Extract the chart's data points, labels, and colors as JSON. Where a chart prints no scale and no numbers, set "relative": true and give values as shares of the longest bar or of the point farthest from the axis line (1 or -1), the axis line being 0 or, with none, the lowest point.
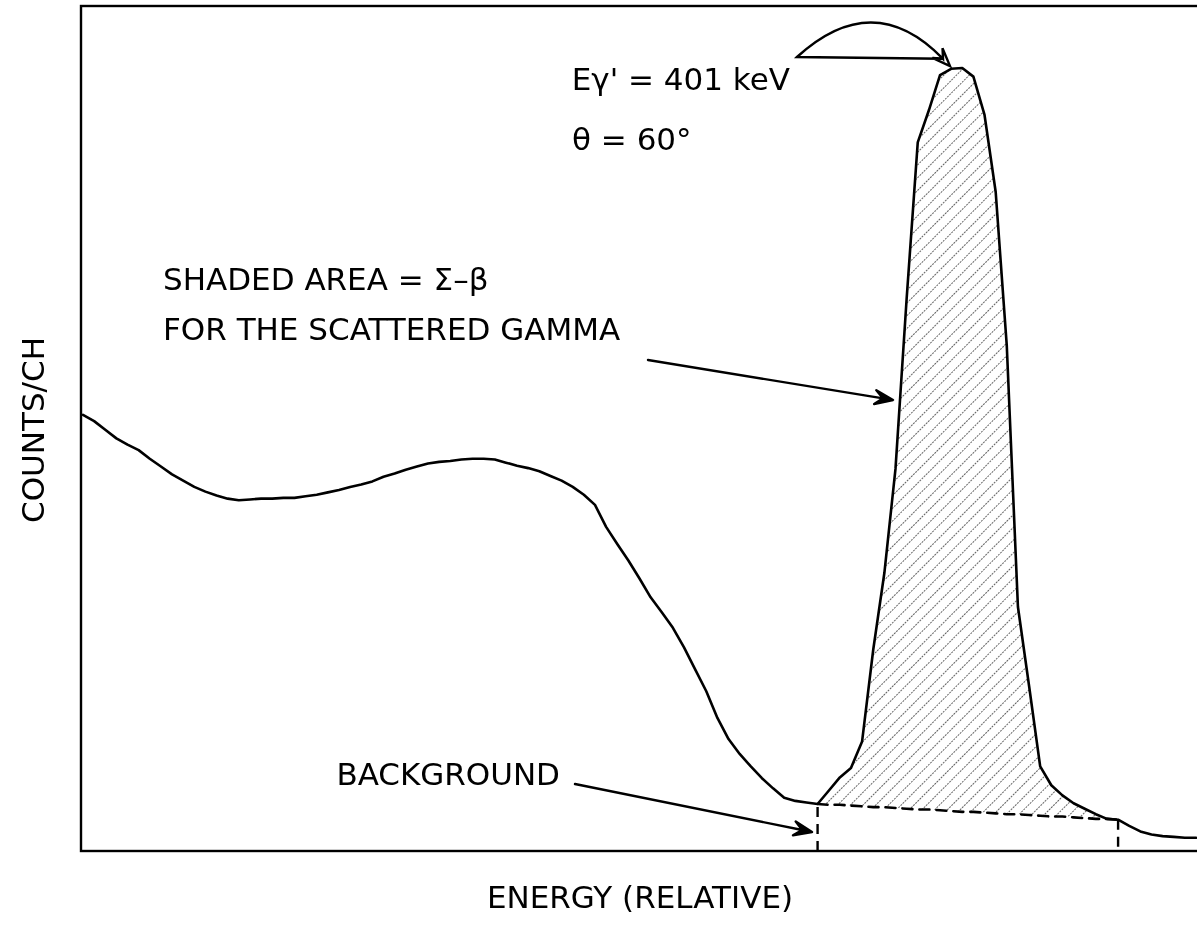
{
  "chart_data": {
    "type": "line",
    "relative": true,
    "xlabel": "ENERGY (RELATIVE)",
    "ylabel": "COUNTS/CH",
    "categories": [
      null,
      null,
      null,
      null,
      null,
      null,
      null,
      null,
      null,
      null,
      null,
      null,
      null,
      null,
      null,
      null,
      null,
      null,
      null,
      null,
      null,
      null,
      null,
      null,
      null,
      null,
      null,
      null,
      null,
      null,
      null,
      null,
      null,
      null,
      null,
      null,
      null,
      null,
      null,
      null,
      null,
      null,
      null,
      null,
      null,
      null,
      null,
      null,
      null,
      null,
      null,
      null,
      null,
      null,
      null,
      null,
      null,
      null,
      null,
      null,
      null,
      null,
      null,
      null,
      null,
      null,
      null,
      null,
      null,
      null,
      null,
      null,
      null,
      null,
      null,
      null,
      null,
      null,
      null,
      null,
      null,
      null,
      null,
      null,
      null,
      null,
      null,
      null,
      null,
      null,
      null,
      null,
      null,
      null,
      null,
      null,
      null,
      null,
      null,
      null,
      null
    ],
    "annotations": [
      "Eγ' = 401 keV",
      "θ = 60°",
      "SHADED AREA = Σ–β\nFOR THE SCATTERED GAMMA",
      "BACKGROUND"
    ],
    "series": [
      {
        "color": "#000000",
        "values": [
          0.557,
          0.549,
          0.538,
          0.527,
          0.519,
          0.512,
          0.501,
          0.491,
          0.481,
          0.473,
          0.465,
          0.459,
          0.454,
          0.45,
          0.448,
          0.449,
          0.45,
          0.45,
          0.451,
          0.451,
          0.453,
          0.455,
          0.458,
          0.461,
          0.465,
          0.468,
          0.472,
          0.478,
          0.482,
          0.487,
          0.491,
          0.495,
          0.497,
          0.498,
          0.5,
          0.501,
          0.501,
          0.5,
          0.496,
          0.492,
          0.489,
          0.485,
          0.479,
          0.473,
          0.465,
          0.455,
          0.442,
          0.414,
          0.392,
          0.371,
          0.348,
          0.324,
          0.305,
          0.285,
          0.26,
          0.232,
          0.204,
          0.17,
          0.143,
          0.124,
          0.108,
          0.093,
          0.08,
          0.068,
          0.064,
          0.062,
          0.06,
          0.077,
          0.094,
          0.106,
          0.14,
          0.257,
          0.355,
          0.488,
          0.705,
          0.905,
          0.946,
          0.991,
          0.999,
          1.0,
          0.989,
          0.94,
          0.842,
          0.645,
          0.312,
          0.211,
          0.108,
          0.084,
          0.071,
          0.061,
          0.054,
          0.047,
          0.041,
          0.04,
          0.032,
          0.025,
          0.021,
          0.019,
          0.018,
          0.017,
          0.017
        ]
      },
      {
        "type": "line",
        "color": "#000000",
        "line_style": "dashed",
        "values": [
          null,
          null,
          null,
          null,
          null,
          null,
          null,
          null,
          null,
          null,
          null,
          null,
          null,
          null,
          null,
          null,
          null,
          null,
          null,
          null,
          null,
          null,
          null,
          null,
          null,
          null,
          null,
          null,
          null,
          null,
          null,
          null,
          null,
          null,
          null,
          null,
          null,
          null,
          null,
          null,
          null,
          null,
          null,
          null,
          null,
          null,
          null,
          null,
          null,
          null,
          null,
          null,
          null,
          null,
          null,
          null,
          null,
          null,
          null,
          null,
          null,
          null,
          null,
          null,
          null,
          null,
          0.06,
          0.059,
          0.059,
          0.058,
          0.057,
          0.056,
          0.056,
          0.055,
          0.054,
          0.053,
          0.053,
          0.052,
          0.051,
          0.05,
          0.05,
          0.049,
          0.048,
          0.047,
          0.047,
          0.046,
          0.045,
          0.044,
          0.044,
          0.043,
          0.042,
          0.041,
          0.041,
          0.04,
          null,
          null,
          null,
          null,
          null,
          null,
          null
        ]
      },
      {
        "type": "area",
        "color": "#000000",
        "values": [
          null,
          null,
          null,
          null,
          null,
          null,
          null,
          null,
          null,
          null,
          null,
          null,
          null,
          null,
          null,
          null,
          null,
          null,
          null,
          null,
          null,
          null,
          null,
          null,
          null,
          null,
          null,
          null,
          null,
          null,
          null,
          null,
          null,
          null,
          null,
          null,
          null,
          null,
          null,
          null,
          null,
          null,
          null,
          null,
          null,
          null,
          null,
          null,
          null,
          null,
          null,
          null,
          null,
          null,
          null,
          null,
          null,
          null,
          null,
          null,
          null,
          null,
          null,
          null,
          null,
          null,
          0.06,
          0.077,
          0.094,
          0.106,
          0.14,
          0.257,
          0.355,
          0.488,
          0.705,
          0.905,
          0.946,
          0.991,
          0.999,
          1.0,
          0.989,
          0.94,
          0.842,
          0.645,
          0.312,
          0.211,
          0.108,
          0.084,
          0.071,
          0.061,
          0.054,
          0.047,
          0.041,
          0.04,
          null,
          null,
          null,
          null,
          null,
          null,
          null
        ]
      }
    ]
  }
}
